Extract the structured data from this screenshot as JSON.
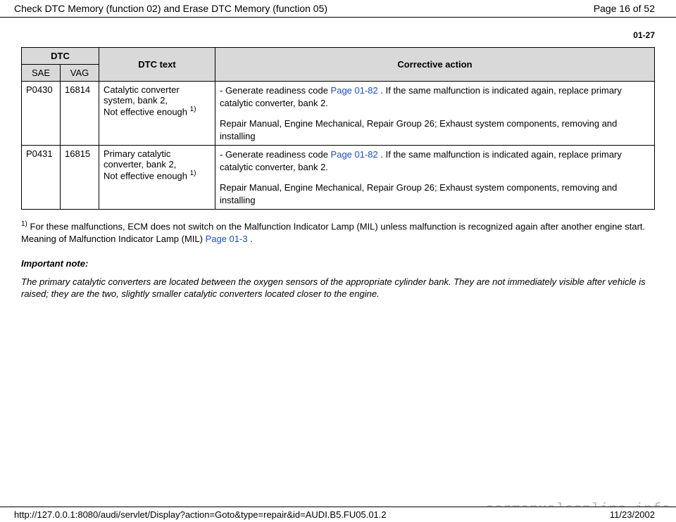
{
  "header": {
    "title": "Check DTC Memory (function 02) and Erase DTC Memory (function 05)",
    "page_label": "Page 16 of 52"
  },
  "section_number": "01-27",
  "table": {
    "columns": {
      "dtc": "DTC",
      "dtc_text": "DTC text",
      "corrective_action": "Corrective action",
      "sae": "SAE",
      "vag": "VAG"
    },
    "rows": [
      {
        "sae": "P0430",
        "vag": "16814",
        "text_line1": "Catalytic converter system, bank 2,",
        "text_line2": "Not effective enough ",
        "text_sup": "1)",
        "action1_pre": "- Generate readiness code ",
        "action1_link": " Page 01-82 ",
        "action1_post": ". If the same malfunction is indicated again, replace primary catalytic converter, bank 2.",
        "action2": " Repair Manual, Engine Mechanical, Repair Group 26; Exhaust system components, removing and installing"
      },
      {
        "sae": "P0431",
        "vag": "16815",
        "text_line1": "Primary catalytic converter, bank 2,",
        "text_line2": "Not effective enough ",
        "text_sup": "1)",
        "action1_pre": "- Generate readiness code ",
        "action1_link": " Page 01-82 ",
        "action1_post": ". If the same malfunction is indicated again, replace primary catalytic converter, bank 2.",
        "action2": " Repair Manual, Engine Mechanical, Repair Group 26; Exhaust system components, removing and installing"
      }
    ]
  },
  "footnote": {
    "sup": "1)",
    "pre": " For these malfunctions, ECM does not switch on the Malfunction Indicator Lamp (MIL) unless malfunction is recognized again after another engine start. Meaning of Malfunction Indicator Lamp (MIL) ",
    "link": " Page 01-3 ",
    "post": "."
  },
  "important": {
    "head": "Important note:",
    "body": "The primary catalytic converters are located between the oxygen sensors of the appropriate cylinder bank. They are not immediately visible after vehicle is raised; they are the two, slightly smaller catalytic converters located closer to the engine."
  },
  "footer": {
    "url": "http://127.0.0.1:8080/audi/servlet/Display?action=Goto&type=repair&id=AUDI.B5.FU05.01.2",
    "date": "11/23/2002"
  },
  "watermark": "carmanualsonline.info",
  "style": {
    "header_bg": "#d9d9d9",
    "link_color": "#1a4ec8",
    "border_color": "#000000",
    "watermark_color": "#b8b8b8",
    "font_body": 13,
    "font_header": 14
  }
}
